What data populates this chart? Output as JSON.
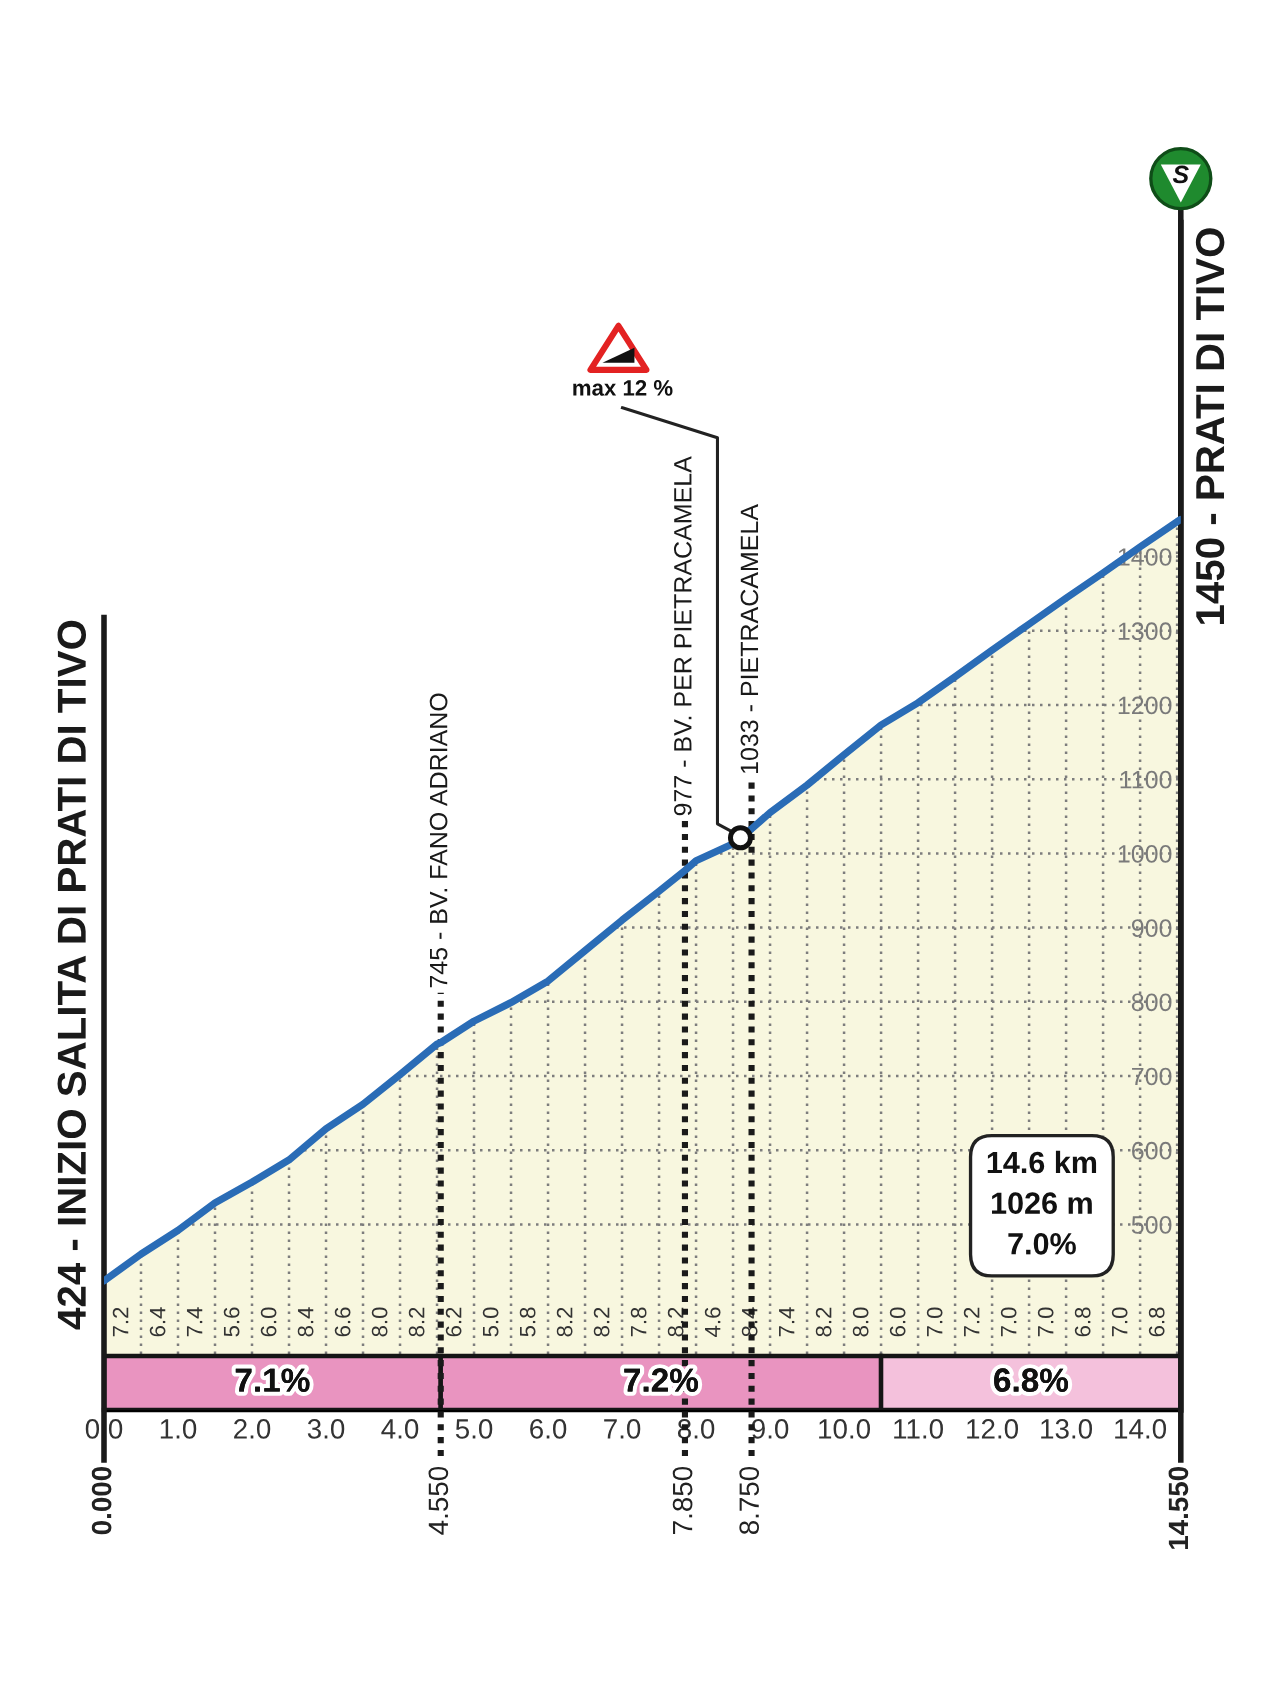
{
  "chart_data": {
    "type": "area",
    "x": [
      0,
      0.5,
      1,
      1.5,
      2,
      2.5,
      3,
      3.5,
      4,
      4.5,
      4.55,
      5,
      5.5,
      6,
      6.5,
      7,
      7.5,
      7.85,
      8,
      8.5,
      8.75,
      9,
      9.5,
      10,
      10.5,
      11,
      11.5,
      12,
      12.5,
      13,
      13.5,
      14,
      14.5,
      14.55
    ],
    "series": [
      {
        "color": "#2a6cb6",
        "values": [
          424,
          460,
          492,
          529,
          557,
          587,
          629,
          662,
          702,
          743,
          745,
          774,
          799,
          828,
          869,
          910,
          949,
          977,
          990,
          1013,
          1033,
          1055,
          1092,
          1133,
          1173,
          1203,
          1238,
          1274,
          1309,
          1344,
          1378,
          1413,
          1447,
          1450
        ]
      }
    ],
    "xlim": [
      0,
      14.55
    ],
    "ylim": [
      250,
      1850
    ],
    "xticks": [
      {
        "value": 0,
        "label": "0.0"
      },
      {
        "value": 0.5,
        "label": null
      },
      {
        "value": 1,
        "label": "1.0"
      },
      {
        "value": 1.5,
        "label": null
      },
      {
        "value": 2,
        "label": "2.0"
      },
      {
        "value": 2.5,
        "label": null
      },
      {
        "value": 3,
        "label": "3.0"
      },
      {
        "value": 3.5,
        "label": null
      },
      {
        "value": 4,
        "label": "4.0"
      },
      {
        "value": 4.5,
        "label": null
      },
      {
        "value": 5,
        "label": "5.0"
      },
      {
        "value": 5.5,
        "label": null
      },
      {
        "value": 6,
        "label": "6.0"
      },
      {
        "value": 6.5,
        "label": null
      },
      {
        "value": 7,
        "label": "7.0"
      },
      {
        "value": 7.5,
        "label": null
      },
      {
        "value": 8,
        "label": "8.0"
      },
      {
        "value": 8.5,
        "label": null
      },
      {
        "value": 9,
        "label": "9.0"
      },
      {
        "value": 9.5,
        "label": null
      },
      {
        "value": 10,
        "label": "10.0"
      },
      {
        "value": 10.5,
        "label": null
      },
      {
        "value": 11,
        "label": "11.0"
      },
      {
        "value": 11.5,
        "label": null
      },
      {
        "value": 12,
        "label": "12.0"
      },
      {
        "value": 12.5,
        "label": null
      },
      {
        "value": 13,
        "label": "13.0"
      },
      {
        "value": 13.5,
        "label": null
      },
      {
        "value": 14,
        "label": "14.0"
      },
      {
        "value": 14.5,
        "label": null
      }
    ],
    "yticks": [
      500,
      600,
      700,
      800,
      900,
      1000,
      1100,
      1200,
      1300,
      1400
    ],
    "x2lim": [
      0,
      14.55
    ],
    "x2ticks": [
      {
        "value": 0,
        "label": "0.000"
      },
      {
        "value": 4.55,
        "label": "4.550"
      },
      {
        "value": 7.85,
        "label": "7.850"
      },
      {
        "value": 8.75,
        "label": "8.750"
      },
      {
        "value": 14.55,
        "label": "14.550"
      }
    ],
    "grid": true,
    "ref_lines": [
      {
        "axis": "x",
        "value": 0,
        "label": "424 - INIZIO SALITA DI PRATI DI TIVO",
        "color": "#1a1a1a",
        "line_style": "solid"
      },
      {
        "axis": "x",
        "value": 4.55,
        "label": "745 - BV. FANO ADRIANO",
        "color": "#1a1a1a",
        "line_style": "dotted"
      },
      {
        "axis": "x",
        "value": 7.85,
        "label": "977 - BV. PER PIETRACAMELA",
        "color": "#1a1a1a",
        "line_style": "dotted"
      },
      {
        "axis": "x",
        "value": 8.75,
        "label": "1033 - PIETRACAMELA",
        "color": "#1a1a1a",
        "line_style": "dotted"
      },
      {
        "axis": "x",
        "value": 14.55,
        "label": "1450 - PRATI DI TIVO",
        "color": "#1a1a1a",
        "line_style": "solid"
      }
    ],
    "bands": [
      {
        "axis": "x",
        "from": 0,
        "to": 4.55,
        "label": "7.1%",
        "color": "#e994c0"
      },
      {
        "axis": "x",
        "from": 4.55,
        "to": 10.5,
        "label": "7.2%",
        "color": "#e994c0"
      },
      {
        "axis": "x",
        "from": 10.5,
        "to": 14.55,
        "label": "6.8%",
        "color": "#f4c1dc"
      }
    ],
    "annotations": [
      "14.6 km\n1026 m\n7.0%",
      "S",
      {
        "text": "max 12 %",
        "x": 8.6,
        "y": 1021
      },
      "7.2",
      "6.4",
      "7.4",
      "5.6",
      "6.0",
      "8.4",
      "6.6",
      "8.0",
      "8.2",
      "6.2",
      "5.0",
      "5.8",
      "8.2",
      "8.2",
      "7.8",
      "8.2",
      "4.6",
      "8.4",
      "7.4",
      "8.2",
      "8.0",
      "6.0",
      "7.0",
      "7.2",
      "7.0",
      "7.0",
      "6.8",
      "7.0",
      "6.8"
    ]
  }
}
